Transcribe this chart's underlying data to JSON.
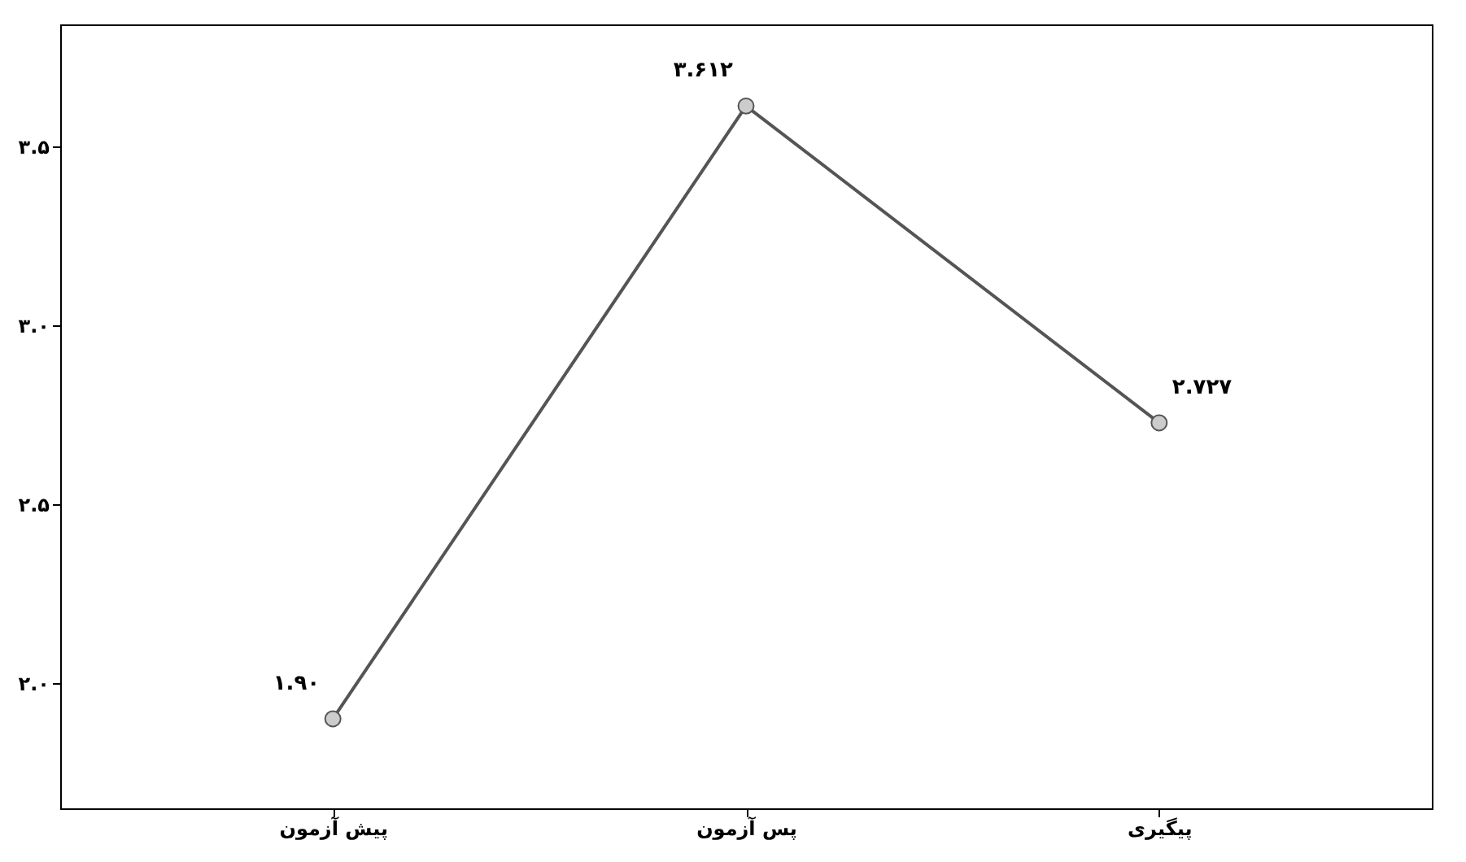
{
  "chart_data": {
    "type": "line",
    "categories": [
      "پیش آزمون",
      "پس آزمون",
      "پیگیری"
    ],
    "series": [
      {
        "color": "#555555",
        "values": [
          1.9,
          3.612,
          2.727
        ],
        "value_labels": [
          "۱.۹۰",
          "۳.۶۱۲",
          "۲.۷۲۷"
        ]
      }
    ],
    "ylim": [
      1.65,
      3.84
    ],
    "yticks": [
      {
        "value": 2.0,
        "label": "۲.۰"
      },
      {
        "value": 2.5,
        "label": "۲.۵"
      },
      {
        "value": 3.0,
        "label": "۳.۰"
      },
      {
        "value": 3.5,
        "label": "۳.۵"
      }
    ],
    "marker": "circle",
    "line_style": "solid",
    "grid": false,
    "legend": false
  }
}
